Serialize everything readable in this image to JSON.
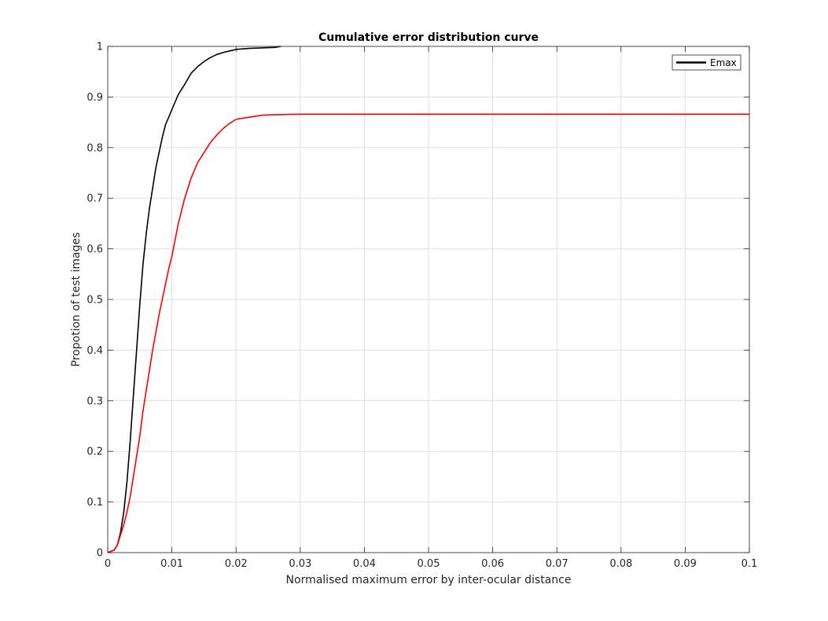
{
  "chart_data": {
    "type": "line",
    "title": "Cumulative error distribution curve",
    "xlabel": "Normalised maximum error by inter-ocular distance",
    "ylabel": "Propotion of test images",
    "xlim": [
      0,
      0.1
    ],
    "ylim": [
      0,
      1
    ],
    "xticks": [
      0,
      0.01,
      0.02,
      0.03,
      0.04,
      0.05,
      0.06,
      0.07,
      0.08,
      0.09,
      0.1
    ],
    "xtick_labels": [
      "0",
      "0.01",
      "0.02",
      "0.03",
      "0.04",
      "0.05",
      "0.06",
      "0.07",
      "0.08",
      "0.09",
      "0.1"
    ],
    "yticks": [
      0,
      0.1,
      0.2,
      0.3,
      0.4,
      0.5,
      0.6,
      0.7,
      0.8,
      0.9,
      1
    ],
    "ytick_labels": [
      "0",
      "0.1",
      "0.2",
      "0.3",
      "0.4",
      "0.5",
      "0.6",
      "0.7",
      "0.8",
      "0.9",
      "1"
    ],
    "grid": true,
    "legend_position": "top-right",
    "legend_entries": [
      "Emax"
    ],
    "series": [
      {
        "name": "Emax",
        "color": "#000000",
        "x": [
          0,
          0.001,
          0.0015,
          0.002,
          0.0025,
          0.003,
          0.0035,
          0.004,
          0.0045,
          0.005,
          0.0055,
          0.006,
          0.0065,
          0.007,
          0.0075,
          0.008,
          0.0085,
          0.009,
          0.0095,
          0.01,
          0.011,
          0.012,
          0.013,
          0.014,
          0.015,
          0.016,
          0.017,
          0.018,
          0.019,
          0.02,
          0.022,
          0.024,
          0.026,
          0.027
        ],
        "y": [
          0,
          0.005,
          0.015,
          0.04,
          0.08,
          0.14,
          0.22,
          0.31,
          0.4,
          0.49,
          0.57,
          0.63,
          0.68,
          0.72,
          0.76,
          0.79,
          0.82,
          0.845,
          0.86,
          0.875,
          0.905,
          0.925,
          0.947,
          0.96,
          0.97,
          0.978,
          0.984,
          0.988,
          0.991,
          0.994,
          0.996,
          0.997,
          0.998,
          1.0
        ]
      },
      {
        "color": "#ff0000",
        "x": [
          0,
          0.001,
          0.0015,
          0.002,
          0.0025,
          0.003,
          0.0035,
          0.004,
          0.0045,
          0.005,
          0.0055,
          0.006,
          0.0065,
          0.007,
          0.0075,
          0.008,
          0.0085,
          0.009,
          0.0095,
          0.01,
          0.011,
          0.012,
          0.013,
          0.014,
          0.015,
          0.016,
          0.017,
          0.018,
          0.019,
          0.02,
          0.021,
          0.022,
          0.024,
          0.026,
          0.03,
          0.1
        ],
        "y": [
          0,
          0.005,
          0.015,
          0.035,
          0.055,
          0.08,
          0.11,
          0.15,
          0.19,
          0.23,
          0.28,
          0.32,
          0.36,
          0.4,
          0.435,
          0.47,
          0.5,
          0.53,
          0.56,
          0.585,
          0.65,
          0.7,
          0.74,
          0.77,
          0.79,
          0.81,
          0.825,
          0.838,
          0.848,
          0.856,
          0.858,
          0.86,
          0.864,
          0.865,
          0.866,
          0.866
        ]
      }
    ]
  }
}
